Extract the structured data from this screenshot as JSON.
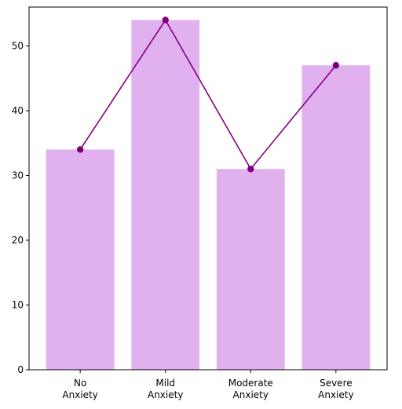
{
  "chart_data": {
    "type": "bar",
    "categories": [
      "No\nAnxiety",
      "Mild\nAnxiety",
      "Moderate\nAnxiety",
      "Severe\nAnxiety"
    ],
    "values": [
      34,
      54,
      31,
      47
    ],
    "overlay_line": true,
    "ylim": [
      0,
      56
    ],
    "yticks": [
      0,
      10,
      20,
      30,
      40,
      50
    ],
    "title": "",
    "xlabel": "",
    "ylabel": "",
    "grid": false,
    "colors": {
      "bar": "#e1b0ef",
      "line": "#800080",
      "marker": "#800080",
      "axis": "#000000"
    }
  }
}
